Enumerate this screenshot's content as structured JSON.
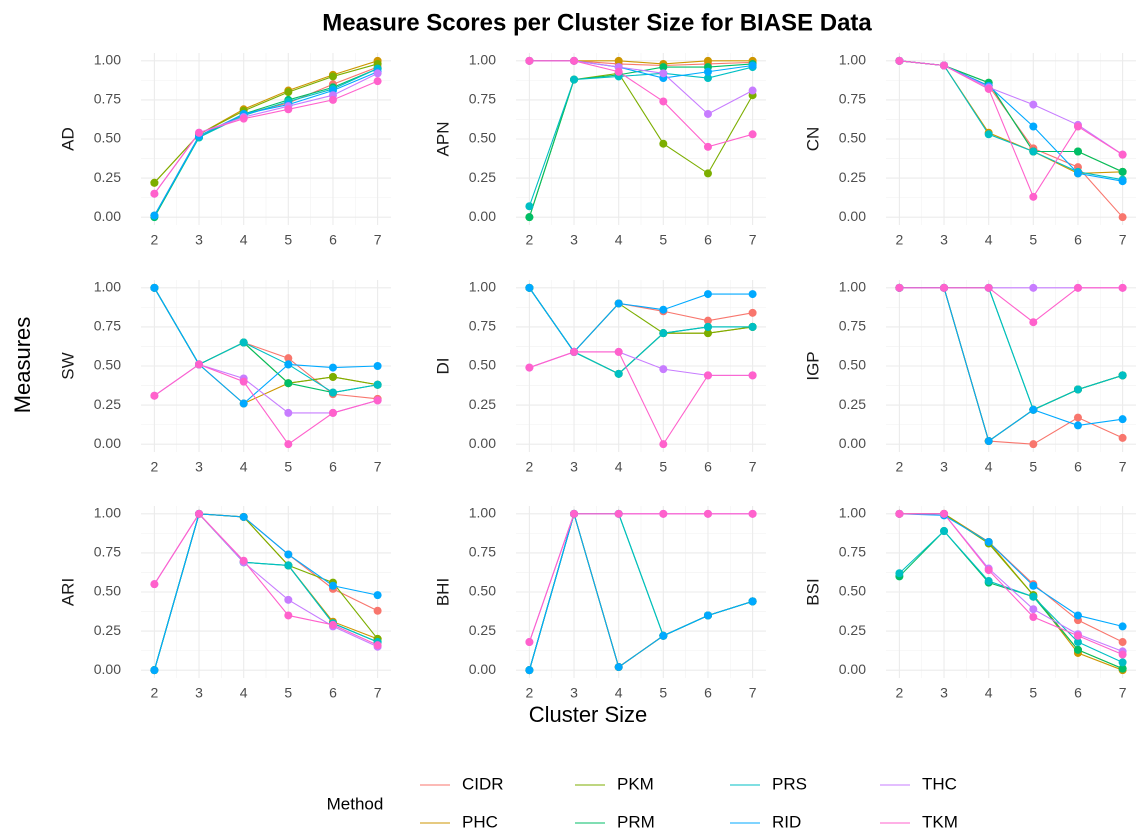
{
  "chart_data": {
    "type": "line",
    "title": "Measure Scores per Cluster Size for BIASE Data",
    "x_label": "Cluster Size",
    "y_label": "Measures",
    "legend_title": "Method",
    "x": [
      2,
      3,
      4,
      5,
      6,
      7
    ],
    "xlim": [
      1.7,
      7.3
    ],
    "xticks": [
      2,
      3,
      4,
      5,
      6,
      7
    ],
    "ylim": [
      -0.05,
      1.05
    ],
    "yticks": [
      {
        "value": 0,
        "label": "0.00"
      },
      {
        "value": 0.25,
        "label": "0.25"
      },
      {
        "value": 0.5,
        "label": "0.50"
      },
      {
        "value": 0.75,
        "label": "0.75"
      },
      {
        "value": 1,
        "label": "1.00"
      }
    ],
    "grid": true,
    "series": [
      {
        "name": "CIDR",
        "color": "#F8766D"
      },
      {
        "name": "PHC",
        "color": "#CD9600"
      },
      {
        "name": "PKM",
        "color": "#7CAE00"
      },
      {
        "name": "PRM",
        "color": "#00BE67"
      },
      {
        "name": "PRS",
        "color": "#00BFC4"
      },
      {
        "name": "RID",
        "color": "#00A9FF"
      },
      {
        "name": "THC",
        "color": "#C77CFF"
      },
      {
        "name": "TKM",
        "color": "#FF61CC"
      }
    ],
    "panels": [
      {
        "label": "AD",
        "values": [
          [
            0.01,
            0.52,
            0.66,
            0.73,
            0.85,
            0.96
          ],
          [
            0.22,
            0.53,
            0.69,
            0.81,
            0.91,
            1.0
          ],
          [
            0.22,
            0.53,
            0.68,
            0.8,
            0.9,
            0.98
          ],
          [
            0.0,
            0.51,
            0.66,
            0.75,
            0.83,
            0.95
          ],
          [
            0.01,
            0.51,
            0.65,
            0.74,
            0.82,
            0.95
          ],
          [
            0.01,
            0.52,
            0.66,
            0.72,
            0.81,
            0.93
          ],
          [
            0.15,
            0.54,
            0.64,
            0.71,
            0.78,
            0.92
          ],
          [
            0.15,
            0.54,
            0.63,
            0.69,
            0.75,
            0.87
          ]
        ]
      },
      {
        "label": "APN",
        "values": [
          [
            1,
            1,
            0.98,
            0.97,
            0.98,
            0.99
          ],
          [
            1,
            1,
            1,
            0.98,
            1,
            1
          ],
          [
            0,
            0.88,
            0.92,
            0.47,
            0.28,
            0.78
          ],
          [
            0,
            0.88,
            0.91,
            0.96,
            0.96,
            0.98
          ],
          [
            0.07,
            0.88,
            0.9,
            0.92,
            0.89,
            0.96
          ],
          [
            1,
            1,
            0.96,
            0.89,
            0.93,
            0.97
          ],
          [
            1,
            1,
            0.96,
            0.92,
            0.66,
            0.81
          ],
          [
            1,
            1,
            0.93,
            0.74,
            0.45,
            0.53
          ]
        ]
      },
      {
        "label": "CN",
        "values": [
          [
            1,
            0.97,
            0.84,
            0.44,
            0.32,
            0.0
          ],
          [
            1,
            0.97,
            0.54,
            0.42,
            0.28,
            0.29
          ],
          [
            1,
            0.97,
            0.86,
            0.42,
            0.42,
            0.29
          ],
          [
            1,
            0.97,
            0.86,
            0.42,
            0.42,
            0.29
          ],
          [
            1,
            0.97,
            0.53,
            0.42,
            0.29,
            0.24
          ],
          [
            1,
            0.97,
            0.84,
            0.58,
            0.28,
            0.23
          ],
          [
            1,
            0.97,
            0.83,
            0.72,
            0.59,
            0.4
          ],
          [
            1,
            0.97,
            0.82,
            0.13,
            0.58,
            0.4
          ]
        ]
      },
      {
        "label": "SW",
        "values": [
          [
            1,
            0.51,
            0.65,
            0.55,
            0.32,
            0.29
          ],
          [
            1,
            0.51,
            0.26,
            0.39,
            0.43,
            0.38
          ],
          [
            1,
            0.51,
            0.65,
            0.39,
            0.43,
            0.38
          ],
          [
            1,
            0.51,
            0.65,
            0.39,
            0.33,
            0.38
          ],
          [
            1,
            0.51,
            0.65,
            0.51,
            0.33,
            0.38
          ],
          [
            1,
            0.51,
            0.26,
            0.51,
            0.49,
            0.5
          ],
          [
            0.31,
            0.51,
            0.42,
            0.2,
            0.2,
            0.28
          ],
          [
            0.31,
            0.51,
            0.4,
            0.0,
            0.2,
            0.28
          ]
        ]
      },
      {
        "label": "DI",
        "values": [
          [
            1,
            0.59,
            0.9,
            0.85,
            0.79,
            0.84
          ],
          [
            1,
            0.59,
            0.45,
            0.71,
            0.71,
            0.75
          ],
          [
            1,
            0.59,
            0.9,
            0.71,
            0.71,
            0.75
          ],
          [
            1,
            0.59,
            0.45,
            0.71,
            0.75,
            0.75
          ],
          [
            1,
            0.59,
            0.45,
            0.71,
            0.75,
            0.75
          ],
          [
            1,
            0.59,
            0.9,
            0.86,
            0.96,
            0.96
          ],
          [
            0.49,
            0.59,
            0.59,
            0.48,
            0.44,
            0.44
          ],
          [
            0.49,
            0.59,
            0.59,
            0.0,
            0.44,
            0.44
          ]
        ]
      },
      {
        "label": "IGP",
        "values": [
          [
            1,
            1,
            0.02,
            0.0,
            0.17,
            0.04
          ],
          [
            1,
            1,
            0.02,
            0.22,
            0.35,
            0.44
          ],
          [
            1,
            1,
            0.02,
            0.22,
            0.35,
            0.44
          ],
          [
            1,
            1,
            1,
            0.22,
            0.35,
            0.44
          ],
          [
            1,
            1,
            1,
            0.22,
            0.35,
            0.44
          ],
          [
            1,
            1,
            0.02,
            0.22,
            0.12,
            0.16
          ],
          [
            1,
            1,
            1,
            1,
            1,
            1
          ],
          [
            1,
            1,
            1,
            0.78,
            1,
            1
          ]
        ]
      },
      {
        "label": "ARI",
        "values": [
          [
            0,
            1,
            0.98,
            0.74,
            0.52,
            0.38
          ],
          [
            0,
            1,
            0.98,
            0.67,
            0.31,
            0.2
          ],
          [
            0,
            1,
            0.98,
            0.67,
            0.56,
            0.2
          ],
          [
            0,
            1,
            0.69,
            0.67,
            0.3,
            0.18
          ],
          [
            0,
            1,
            0.69,
            0.67,
            0.3,
            0.18
          ],
          [
            0,
            1,
            0.98,
            0.74,
            0.54,
            0.48
          ],
          [
            0.55,
            1,
            0.69,
            0.45,
            0.28,
            0.15
          ],
          [
            0.55,
            1,
            0.7,
            0.35,
            0.29,
            0.16
          ]
        ]
      },
      {
        "label": "BHI",
        "values": [
          [
            0,
            1,
            0.02,
            0.22,
            0.35,
            0.44
          ],
          [
            0,
            1,
            0.02,
            0.22,
            0.35,
            0.44
          ],
          [
            0,
            1,
            0.02,
            0.22,
            0.35,
            0.44
          ],
          [
            0,
            1,
            1,
            0.22,
            0.35,
            0.44
          ],
          [
            0,
            1,
            1,
            0.22,
            0.35,
            0.44
          ],
          [
            0,
            1,
            0.02,
            0.22,
            0.35,
            0.44
          ],
          [
            0.18,
            1,
            1,
            1,
            1,
            1
          ],
          [
            0.18,
            1,
            1,
            1,
            1,
            1
          ]
        ]
      },
      {
        "label": "BSI",
        "values": [
          [
            1,
            1,
            0.82,
            0.55,
            0.32,
            0.18
          ],
          [
            1,
            1,
            0.82,
            0.48,
            0.11,
            0.0
          ],
          [
            1,
            1,
            0.81,
            0.48,
            0.13,
            0.01
          ],
          [
            0.6,
            0.89,
            0.56,
            0.47,
            0.13,
            0.01
          ],
          [
            0.62,
            0.89,
            0.57,
            0.47,
            0.18,
            0.05
          ],
          [
            1,
            0.99,
            0.82,
            0.54,
            0.35,
            0.28
          ],
          [
            1,
            1,
            0.65,
            0.39,
            0.23,
            0.12
          ],
          [
            1,
            1,
            0.64,
            0.34,
            0.22,
            0.1
          ]
        ]
      }
    ]
  }
}
